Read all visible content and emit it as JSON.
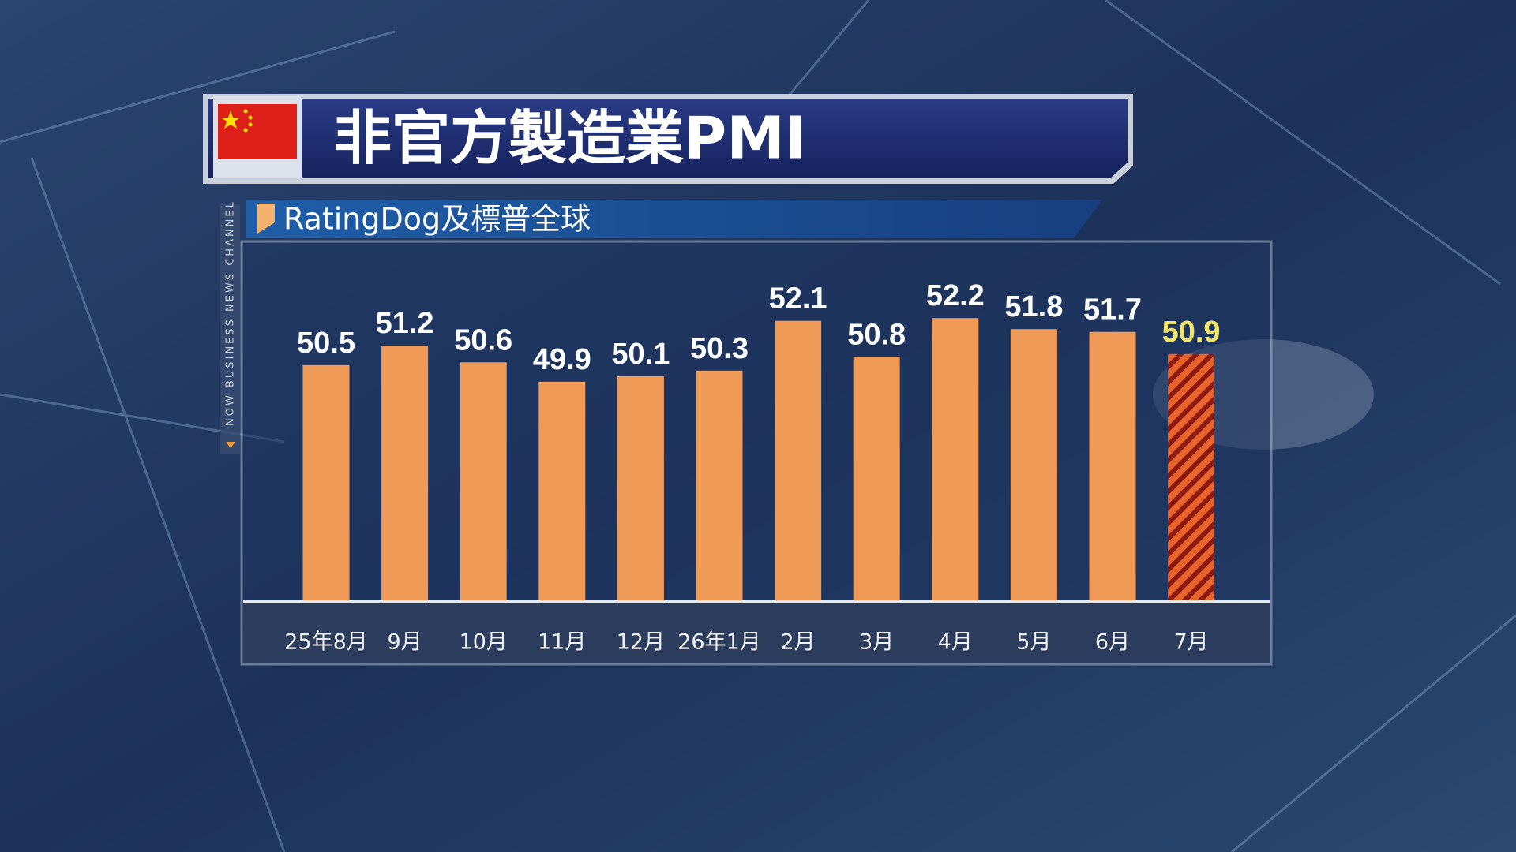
{
  "chart_data": {
    "type": "bar",
    "title": "非官方製造業PMI",
    "subtitle": "RatingDog及標普全球",
    "channel": "NOW BUSINESS NEWS CHANNEL",
    "categories": [
      "25年8月",
      "9月",
      "10月",
      "11月",
      "12月",
      "26年1月",
      "2月",
      "3月",
      "4月",
      "5月",
      "6月",
      "7月"
    ],
    "values": [
      50.5,
      51.2,
      50.6,
      49.9,
      50.1,
      50.3,
      52.1,
      50.8,
      52.2,
      51.8,
      51.7,
      50.9
    ],
    "colors": [
      "#ef9a56",
      "#ef9a56",
      "#ef9a56",
      "#ef9a56",
      "#ef9a56",
      "#ef9a56",
      "#ef9a56",
      "#ef9a56",
      "#ef9a56",
      "#ef9a56",
      "#ef9a56",
      "#e8642c"
    ],
    "bar_styles": [
      "solid",
      "solid",
      "solid",
      "solid",
      "solid",
      "solid",
      "solid",
      "solid",
      "solid",
      "solid",
      "solid",
      "hatched"
    ],
    "label_colors": [
      "#ffffff",
      "#ffffff",
      "#ffffff",
      "#ffffff",
      "#ffffff",
      "#ffffff",
      "#ffffff",
      "#ffffff",
      "#ffffff",
      "#ffffff",
      "#ffffff",
      "#f2e66a"
    ],
    "ylim": [
      42,
      54
    ]
  }
}
